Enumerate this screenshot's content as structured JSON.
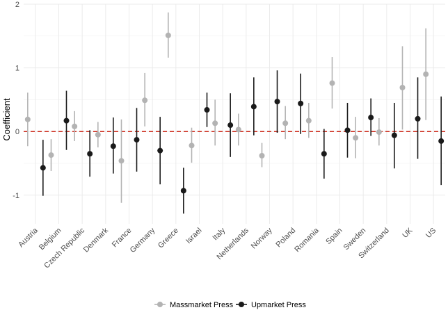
{
  "chart_data": {
    "type": "scatter",
    "title": "",
    "xlabel": "",
    "ylabel": "Coefficient",
    "ylim": [
      -1.45,
      2.0
    ],
    "yticks": [
      -1,
      0,
      1,
      2
    ],
    "grid": true,
    "legend_position": "bottom",
    "reference_line": {
      "y": 0,
      "style": "dashed",
      "color": "#cc2a1b"
    },
    "categories": [
      "Austria",
      "Belgium",
      "Czech Republic",
      "Denmark",
      "France",
      "Germany",
      "Greece",
      "Israel",
      "Italy",
      "Netherlands",
      "Norway",
      "Poland",
      "Romania",
      "Spain",
      "Sweden",
      "Switzerland",
      "UK",
      "US"
    ],
    "series": [
      {
        "name": "Massmarket Press",
        "color": "#b3b3b3",
        "values": [
          0.19,
          -0.37,
          0.08,
          -0.05,
          -0.46,
          0.49,
          1.51,
          -0.22,
          0.13,
          0.03,
          -0.38,
          0.13,
          0.17,
          0.76,
          -0.1,
          -0.01,
          0.69,
          0.9
        ],
        "lower": [
          -0.23,
          -0.62,
          -0.15,
          -0.25,
          -1.12,
          0.08,
          1.16,
          -0.49,
          -0.22,
          -0.22,
          -0.56,
          -0.12,
          -0.1,
          0.36,
          -0.42,
          -0.22,
          0.03,
          0.18
        ],
        "upper": [
          0.61,
          -0.12,
          0.32,
          0.15,
          0.19,
          0.92,
          1.87,
          0.06,
          0.5,
          0.28,
          -0.18,
          0.4,
          0.45,
          1.17,
          0.23,
          0.21,
          1.34,
          1.62
        ]
      },
      {
        "name": "Upmarket Press",
        "color": "#1a1a1a",
        "values": [
          -0.57,
          0.17,
          -0.35,
          -0.23,
          -0.13,
          -0.3,
          -0.93,
          0.34,
          0.1,
          0.39,
          0.47,
          0.44,
          -0.35,
          0.02,
          0.22,
          -0.06,
          0.2,
          -0.15
        ],
        "lower": [
          -1.01,
          -0.29,
          -0.71,
          -0.66,
          -0.63,
          -0.83,
          -1.29,
          0.07,
          -0.4,
          -0.06,
          -0.02,
          -0.04,
          -0.74,
          -0.41,
          -0.07,
          -0.58,
          -0.43,
          -0.84
        ],
        "upper": [
          -0.13,
          0.64,
          0.02,
          0.22,
          0.37,
          0.23,
          -0.57,
          0.61,
          0.6,
          0.85,
          0.96,
          0.91,
          0.04,
          0.45,
          0.52,
          0.45,
          0.85,
          0.55
        ]
      }
    ]
  }
}
